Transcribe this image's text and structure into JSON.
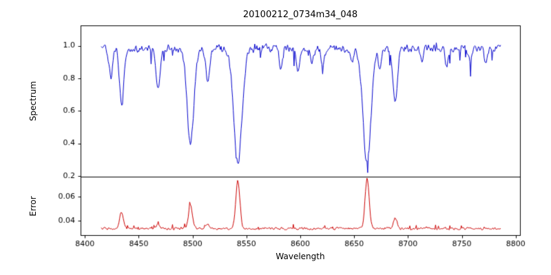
{
  "chart_data": {
    "type": "line",
    "title": "20100212_0734m34_048",
    "xlabel": "Wavelength",
    "xlim": [
      8396,
      8804
    ],
    "x_ticks": [
      8400,
      8450,
      8500,
      8550,
      8600,
      8650,
      8700,
      8750,
      8800
    ],
    "x_tick_labels": [
      "8400",
      "8450",
      "8500",
      "8550",
      "8600",
      "8650",
      "8700",
      "8750",
      "8800"
    ],
    "seed": 20100212,
    "axis_color": "#000000",
    "grid": false,
    "legend": "none",
    "panels": [
      {
        "name": "spectrum",
        "ylabel": "Spectrum",
        "ylim": [
          0.195,
          1.125
        ],
        "yticks": [
          0.2,
          0.4,
          0.6,
          0.8,
          1.0
        ],
        "ytick_labels": [
          "0.2",
          "0.4",
          "0.6",
          "0.8",
          "1.0"
        ],
        "color": "#0000cc",
        "x_range": [
          8415,
          8786
        ],
        "continuum": 0.985,
        "noise": 0.03,
        "down_spike": 0.1,
        "absorption_lines": [
          {
            "center": 8424,
            "depth": 0.18,
            "width": 1.6
          },
          {
            "center": 8434,
            "depth": 0.34,
            "width": 2.0
          },
          {
            "center": 8468,
            "depth": 0.26,
            "width": 1.8
          },
          {
            "center": 8498,
            "depth": 0.58,
            "width": 3.2
          },
          {
            "center": 8514,
            "depth": 0.22,
            "width": 1.8
          },
          {
            "center": 8542,
            "depth": 0.72,
            "width": 3.8
          },
          {
            "center": 8582,
            "depth": 0.12,
            "width": 1.5
          },
          {
            "center": 8598,
            "depth": 0.14,
            "width": 1.5
          },
          {
            "center": 8611,
            "depth": 0.1,
            "width": 1.4
          },
          {
            "center": 8621,
            "depth": 0.12,
            "width": 1.4
          },
          {
            "center": 8648,
            "depth": 0.1,
            "width": 1.4
          },
          {
            "center": 8662,
            "depth": 0.7,
            "width": 3.8
          },
          {
            "center": 8674,
            "depth": 0.12,
            "width": 1.4
          },
          {
            "center": 8688,
            "depth": 0.33,
            "width": 2.0
          },
          {
            "center": 8713,
            "depth": 0.1,
            "width": 1.4
          },
          {
            "center": 8736,
            "depth": 0.1,
            "width": 1.4
          },
          {
            "center": 8757,
            "depth": 0.08,
            "width": 1.4
          },
          {
            "center": 8772,
            "depth": 0.1,
            "width": 1.4
          }
        ]
      },
      {
        "name": "error",
        "ylabel": "Error",
        "ylim": [
          0.028,
          0.077
        ],
        "yticks": [
          0.04,
          0.06
        ],
        "ytick_labels": [
          "0.04",
          "0.06"
        ],
        "color": "#cc0000",
        "x_range": [
          8415,
          8786
        ],
        "baseline": 0.0335,
        "noise": 0.0013,
        "up_spike": 0.0035,
        "emission_peaks": [
          {
            "center": 8434,
            "height": 0.014,
            "width": 1.6
          },
          {
            "center": 8468,
            "height": 0.004,
            "width": 1.5
          },
          {
            "center": 8498,
            "height": 0.02,
            "width": 1.8
          },
          {
            "center": 8514,
            "height": 0.004,
            "width": 1.5
          },
          {
            "center": 8542,
            "height": 0.04,
            "width": 1.9
          },
          {
            "center": 8662,
            "height": 0.042,
            "width": 1.9
          },
          {
            "center": 8688,
            "height": 0.009,
            "width": 1.6
          }
        ]
      }
    ]
  }
}
